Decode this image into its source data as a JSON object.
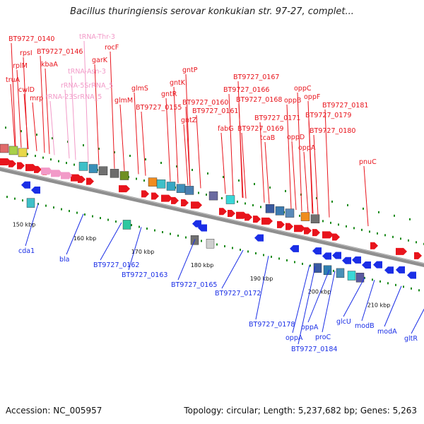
{
  "header": {
    "title": "Bacillus thuringiensis serovar konkukian str. 97-27, complet..."
  },
  "footer": {
    "accession": "Accession: NC_005957",
    "summary": "Topology: circular; Length: 5,237,682 bp; Genes: 5,263"
  },
  "colors": {
    "forward_gene": "#e8141c",
    "reverse_gene": "#1a2ee6",
    "rna": "#f29ac8",
    "backbone": "#8f8f8f",
    "tick": "#1a8a1a"
  },
  "scale_labels": [
    "150 kbp",
    "160 kbp",
    "170 kbp",
    "180 kbp",
    "190 kbp",
    "200 kbp",
    "210 kbp"
  ],
  "forward_labels": [
    {
      "text": "BT9727_0140",
      "rna": false
    },
    {
      "text": "rpsI",
      "rna": false
    },
    {
      "text": "rplM",
      "rna": false
    },
    {
      "text": "truA",
      "rna": false
    },
    {
      "text": "cwlD",
      "rna": false
    },
    {
      "text": "mrp",
      "rna": false
    },
    {
      "text": "BT9727_0146",
      "rna": false
    },
    {
      "text": "kbaA",
      "rna": false
    },
    {
      "text": "tRNA-Thr-3",
      "rna": true
    },
    {
      "text": "rocF",
      "rna": false
    },
    {
      "text": "garK",
      "rna": false
    },
    {
      "text": "tRNA-Asn-3",
      "rna": true
    },
    {
      "text": "rRNA-5SrRNA_5",
      "rna": true
    },
    {
      "text": "rRNA-23SrRNA_5",
      "rna": true
    },
    {
      "text": "glmM",
      "rna": false
    },
    {
      "text": "glmS",
      "rna": false
    },
    {
      "text": "gntP",
      "rna": false
    },
    {
      "text": "gntK",
      "rna": false
    },
    {
      "text": "gntR",
      "rna": false
    },
    {
      "text": "BT9727_0155",
      "rna": false
    },
    {
      "text": "gntZ",
      "rna": false
    },
    {
      "text": "BT9727_0160",
      "rna": false
    },
    {
      "text": "BT9727_0161",
      "rna": false
    },
    {
      "text": "BT9727_0167",
      "rna": false
    },
    {
      "text": "BT9727_0166",
      "rna": false
    },
    {
      "text": "BT9727_0168",
      "rna": false
    },
    {
      "text": "fabG",
      "rna": false
    },
    {
      "text": "BT9727_0169",
      "rna": false
    },
    {
      "text": "tcaB",
      "rna": false
    },
    {
      "text": "BT9727_0171",
      "rna": false
    },
    {
      "text": "oppB",
      "rna": false
    },
    {
      "text": "oppC",
      "rna": false
    },
    {
      "text": "oppF",
      "rna": false
    },
    {
      "text": "oppD",
      "rna": false
    },
    {
      "text": "oppA",
      "rna": false
    },
    {
      "text": "BT9727_0181",
      "rna": false
    },
    {
      "text": "BT9727_0179",
      "rna": false
    },
    {
      "text": "BT9727_0180",
      "rna": false
    },
    {
      "text": "pnuC",
      "rna": false
    }
  ],
  "reverse_labels": [
    {
      "text": "cda1"
    },
    {
      "text": "bla"
    },
    {
      "text": "BT9727_0162"
    },
    {
      "text": "BT9727_0163"
    },
    {
      "text": "BT9727_0165"
    },
    {
      "text": "BT9727_0172"
    },
    {
      "text": "BT9727_0178"
    },
    {
      "text": "oppA"
    },
    {
      "text": "oppA"
    },
    {
      "text": "proC"
    },
    {
      "text": "BT9727_0184"
    },
    {
      "text": "glcU"
    },
    {
      "text": "modB"
    },
    {
      "text": "modA"
    },
    {
      "text": "gltR"
    }
  ]
}
